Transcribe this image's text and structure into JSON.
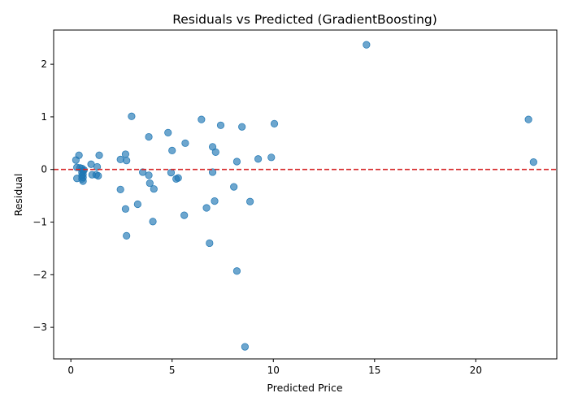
{
  "chart_data": {
    "type": "scatter",
    "title": "Residuals vs Predicted (GradientBoosting)",
    "xlabel": "Predicted Price",
    "ylabel": "Residual",
    "xlim": [
      -0.85,
      24.0
    ],
    "ylim": [
      -3.6,
      2.65
    ],
    "xticks": [
      0,
      5,
      10,
      15,
      20
    ],
    "xtick_labels": [
      "0",
      "5",
      "10",
      "15",
      "20"
    ],
    "yticks": [
      2,
      1,
      0,
      -1,
      -2,
      -3
    ],
    "ytick_labels": [
      "2",
      "1",
      "0",
      "−1",
      "−2",
      "−3"
    ],
    "grid": false,
    "reference_line": {
      "y": 0,
      "style": "dashed",
      "color": "#d62728"
    },
    "marker_color": "#1f77b4",
    "marker_alpha": 0.65,
    "points": [
      {
        "x": 14.6,
        "y": 2.37
      },
      {
        "x": 22.6,
        "y": 0.95
      },
      {
        "x": 22.85,
        "y": 0.14
      },
      {
        "x": 3.0,
        "y": 1.01
      },
      {
        "x": 6.45,
        "y": 0.95
      },
      {
        "x": 7.4,
        "y": 0.84
      },
      {
        "x": 8.45,
        "y": 0.81
      },
      {
        "x": 10.05,
        "y": 0.87
      },
      {
        "x": 3.85,
        "y": 0.62
      },
      {
        "x": 4.8,
        "y": 0.7
      },
      {
        "x": 5.65,
        "y": 0.5
      },
      {
        "x": 7.0,
        "y": 0.43
      },
      {
        "x": 7.15,
        "y": 0.33
      },
      {
        "x": 5.0,
        "y": 0.36
      },
      {
        "x": 8.2,
        "y": 0.15
      },
      {
        "x": 9.25,
        "y": 0.2
      },
      {
        "x": 9.9,
        "y": 0.23
      },
      {
        "x": 0.4,
        "y": 0.27
      },
      {
        "x": 1.4,
        "y": 0.27
      },
      {
        "x": 2.7,
        "y": 0.29
      },
      {
        "x": 2.45,
        "y": 0.19
      },
      {
        "x": 2.75,
        "y": 0.17
      },
      {
        "x": 0.25,
        "y": 0.18
      },
      {
        "x": 1.0,
        "y": 0.1
      },
      {
        "x": 1.3,
        "y": 0.05
      },
      {
        "x": 0.3,
        "y": 0.04
      },
      {
        "x": 0.45,
        "y": 0.03
      },
      {
        "x": 0.55,
        "y": 0.02
      },
      {
        "x": 0.65,
        "y": -0.01
      },
      {
        "x": 0.6,
        "y": -0.03
      },
      {
        "x": 0.55,
        "y": -0.06
      },
      {
        "x": 0.6,
        "y": -0.09
      },
      {
        "x": 0.55,
        "y": -0.12
      },
      {
        "x": 0.6,
        "y": -0.15
      },
      {
        "x": 0.55,
        "y": -0.18
      },
      {
        "x": 0.6,
        "y": -0.22
      },
      {
        "x": 0.3,
        "y": -0.17
      },
      {
        "x": 1.05,
        "y": -0.1
      },
      {
        "x": 1.25,
        "y": -0.1
      },
      {
        "x": 1.35,
        "y": -0.12
      },
      {
        "x": 3.55,
        "y": -0.05
      },
      {
        "x": 3.85,
        "y": -0.11
      },
      {
        "x": 4.95,
        "y": -0.06
      },
      {
        "x": 7.0,
        "y": -0.05
      },
      {
        "x": 5.2,
        "y": -0.18
      },
      {
        "x": 5.3,
        "y": -0.16
      },
      {
        "x": 3.9,
        "y": -0.26
      },
      {
        "x": 4.1,
        "y": -0.37
      },
      {
        "x": 2.45,
        "y": -0.38
      },
      {
        "x": 8.05,
        "y": -0.33
      },
      {
        "x": 7.1,
        "y": -0.6
      },
      {
        "x": 8.85,
        "y": -0.61
      },
      {
        "x": 3.3,
        "y": -0.66
      },
      {
        "x": 6.7,
        "y": -0.73
      },
      {
        "x": 2.7,
        "y": -0.75
      },
      {
        "x": 5.6,
        "y": -0.87
      },
      {
        "x": 4.05,
        "y": -0.99
      },
      {
        "x": 2.75,
        "y": -1.26
      },
      {
        "x": 6.85,
        "y": -1.4
      },
      {
        "x": 8.2,
        "y": -1.93
      },
      {
        "x": 8.6,
        "y": -3.37
      }
    ]
  }
}
